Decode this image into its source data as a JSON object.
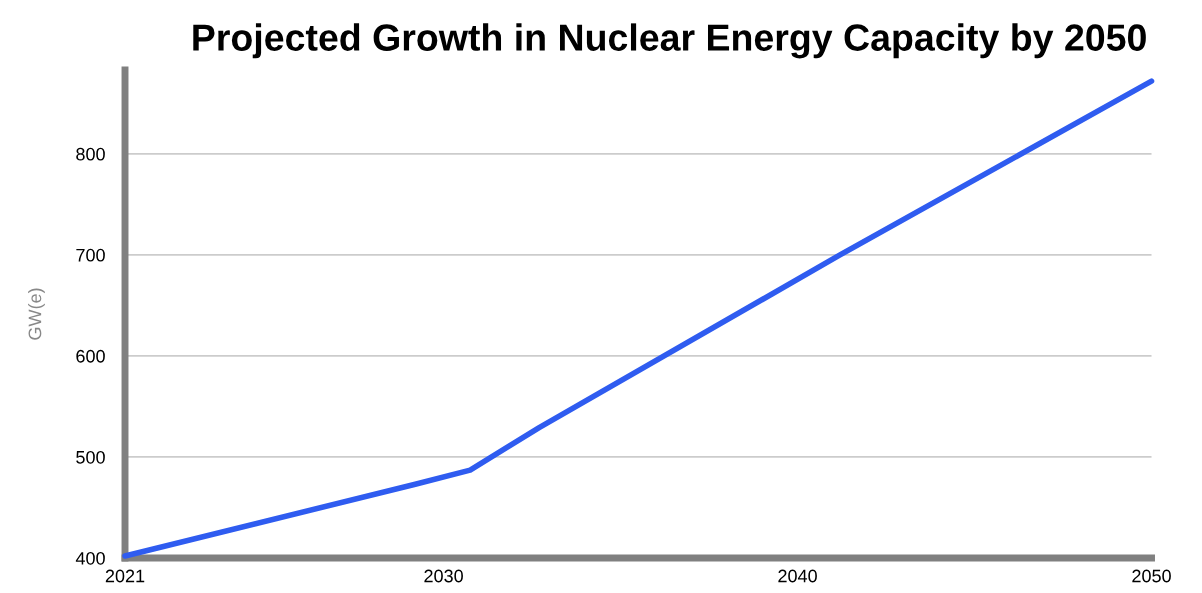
{
  "chart_data": {
    "type": "line",
    "title": "Projected Growth in Nuclear Energy Capacity by 2050",
    "ylabel": "GW(e)",
    "x": [
      2021,
      2029.2,
      2030.75,
      2032.7,
      2041.2,
      2050
    ],
    "series": [
      {
        "color": "#2f5cf0",
        "values": [
          402,
          473,
          487,
          529,
          700,
          872
        ]
      }
    ],
    "xlim": [
      2021,
      2050
    ],
    "xticks": [
      2021,
      2030,
      2040,
      2050
    ],
    "ylim": [
      400,
      883
    ],
    "yticks": [
      400,
      500,
      600,
      700,
      800
    ],
    "grid": "y",
    "marker": "none",
    "line_style": "solid",
    "legend": false
  }
}
